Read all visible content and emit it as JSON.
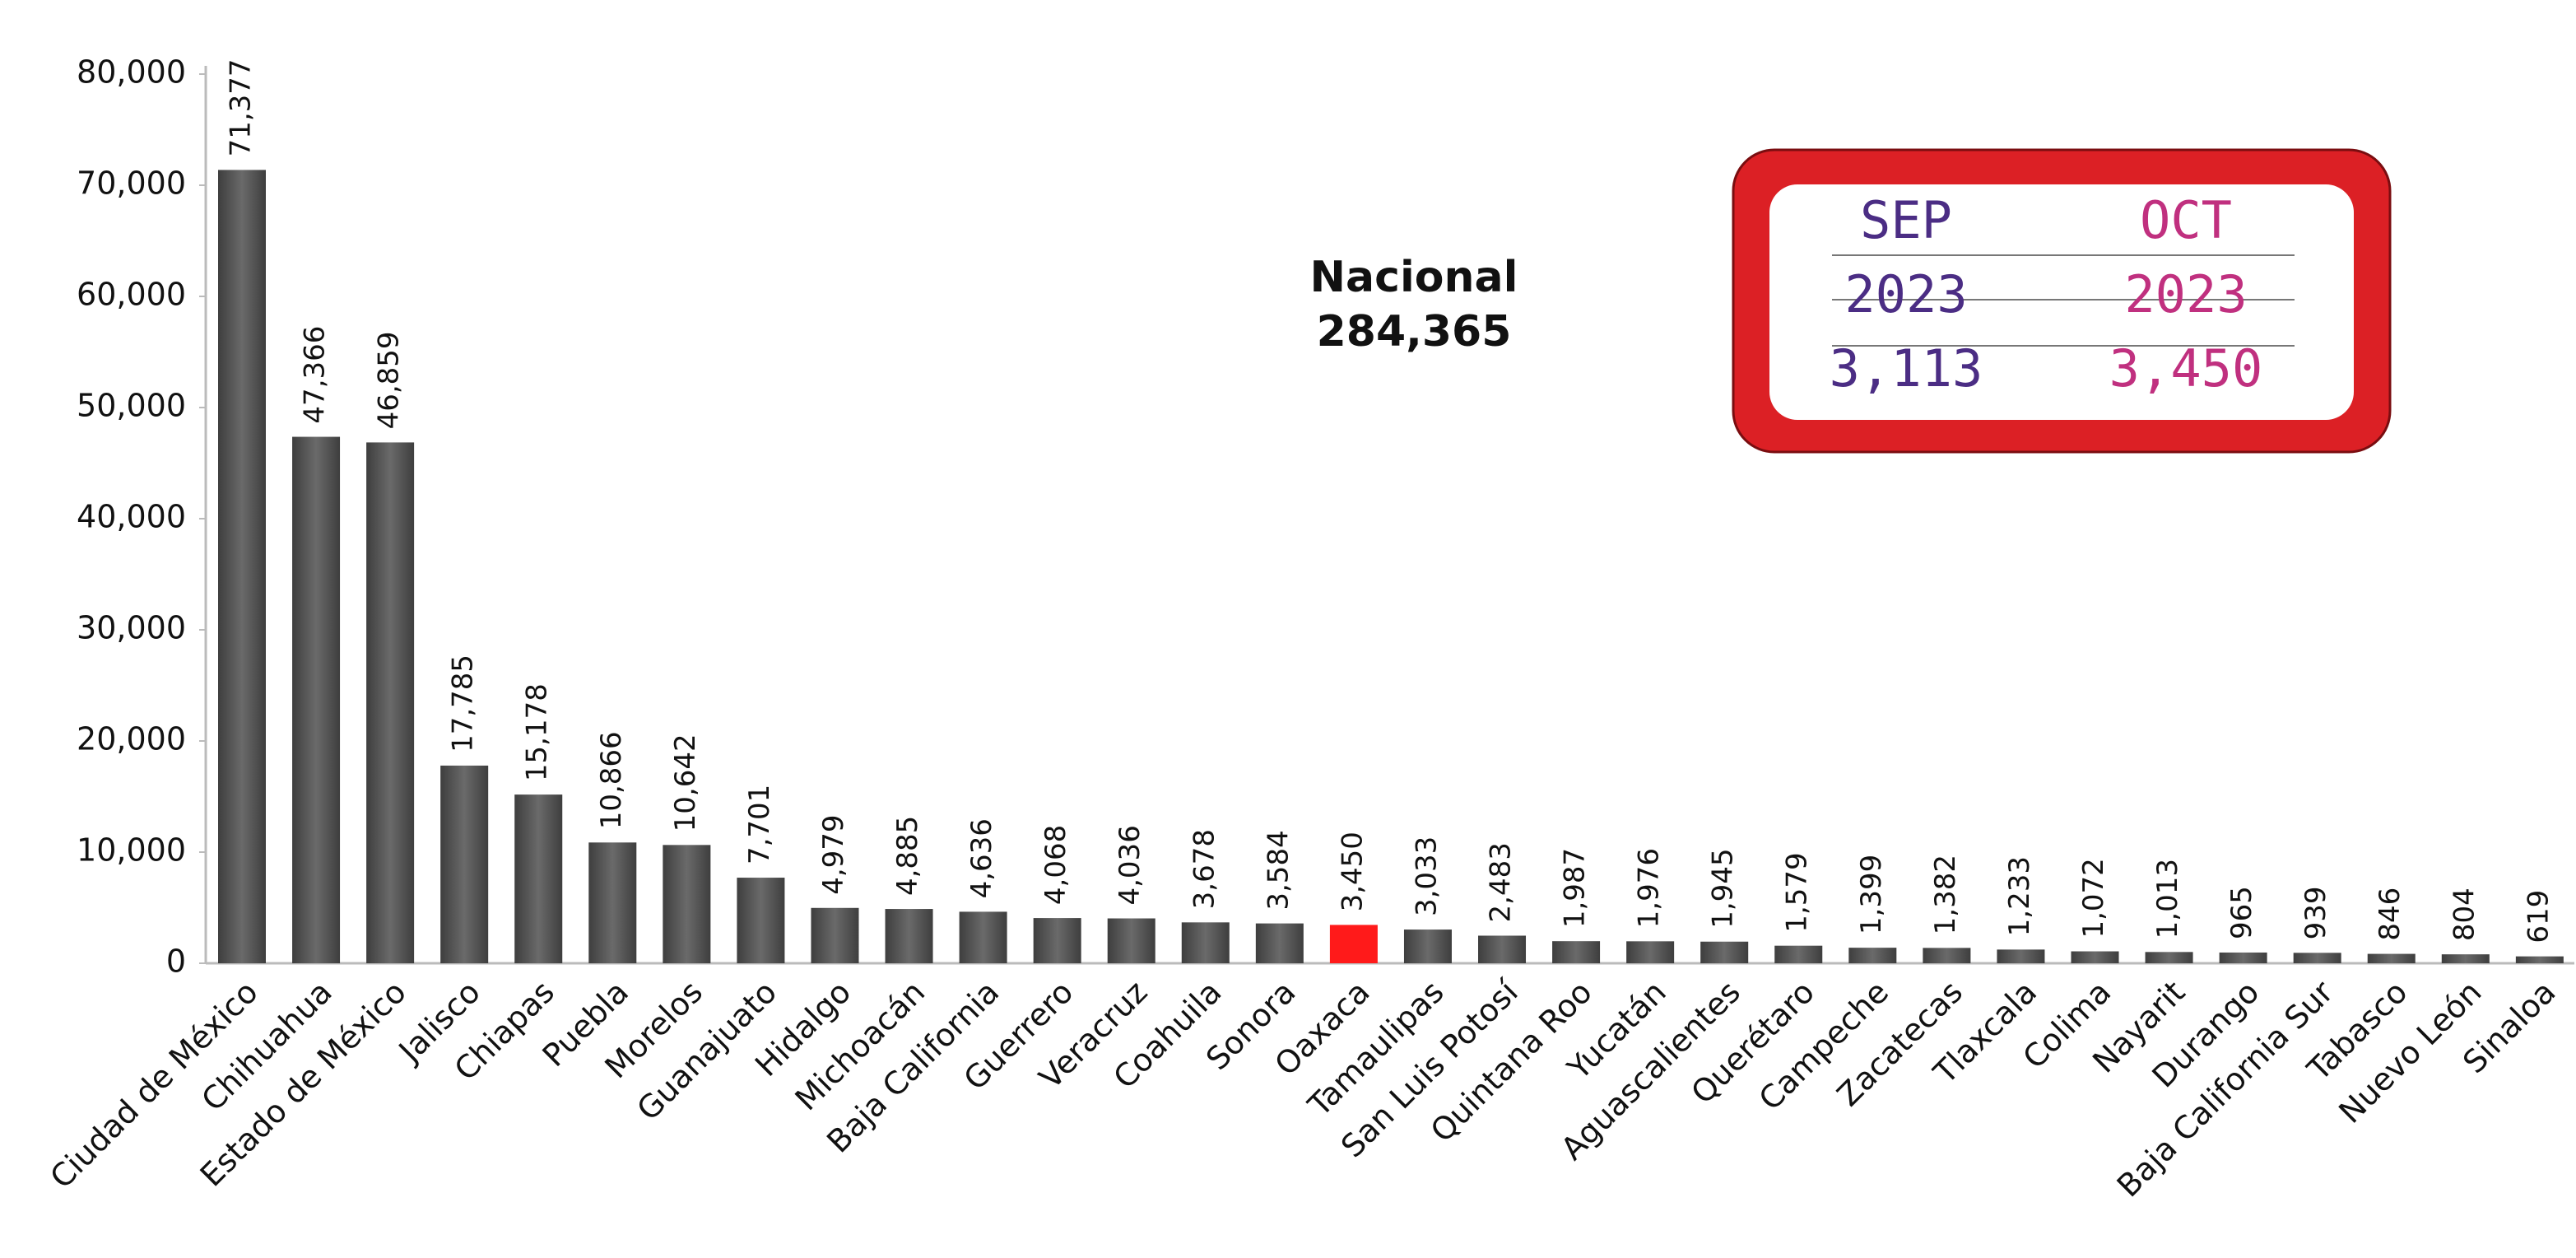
{
  "chart_data": {
    "type": "bar",
    "categories": [
      "Ciudad de México",
      "Chihuahua",
      "Estado de México",
      "Jalisco",
      "Chiapas",
      "Puebla",
      "Morelos",
      "Guanajuato",
      "Hidalgo",
      "Michoacán",
      "Baja California",
      "Guerrero",
      "Veracruz",
      "Coahuila",
      "Sonora",
      "Oaxaca",
      "Tamaulipas",
      "San Luis Potosí",
      "Quintana Roo",
      "Yucatán",
      "Aguascalientes",
      "Querétaro",
      "Campeche",
      "Zacatecas",
      "Tlaxcala",
      "Colima",
      "Nayarit",
      "Durango",
      "Baja California Sur",
      "Tabasco",
      "Nuevo León",
      "Sinaloa"
    ],
    "values": [
      71377,
      47366,
      46859,
      17785,
      15178,
      10866,
      10642,
      7701,
      4979,
      4885,
      4636,
      4068,
      4036,
      3678,
      3584,
      3450,
      3033,
      2483,
      1987,
      1976,
      1945,
      1579,
      1399,
      1382,
      1233,
      1072,
      1013,
      965,
      939,
      846,
      804,
      619
    ],
    "value_labels": [
      "71,377",
      "47,366",
      "46,859",
      "17,785",
      "15,178",
      "10,866",
      "10,642",
      "7,701",
      "4,979",
      "4,885",
      "4,636",
      "4,068",
      "4,036",
      "3,678",
      "3,584",
      "3,450",
      "3,033",
      "2,483",
      "1,987",
      "1,976",
      "1,945",
      "1,579",
      "1,399",
      "1,382",
      "1,233",
      "1,072",
      "1,013",
      "965",
      "939",
      "846",
      "804",
      "619"
    ],
    "color": "#5a5a5a",
    "highlight_category": "Oaxaca",
    "highlight_color": "#ff1a1a",
    "ylim": [
      0,
      80000
    ],
    "yticks": [
      0,
      {
        "value": 10000,
        "label": "10,000"
      },
      {
        "value": 20000,
        "label": "20,000"
      },
      {
        "value": 30000,
        "label": "30,000"
      },
      {
        "value": 40000,
        "label": "40,000"
      },
      {
        "value": 50000,
        "label": "50,000"
      },
      {
        "value": 60000,
        "label": "60,000"
      },
      {
        "value": 70000,
        "label": "70,000"
      },
      {
        "value": 80000,
        "label": "80,000"
      }
    ],
    "grid": false,
    "annotation": {
      "title": "Nacional",
      "value": "284,365"
    },
    "inset": {
      "columns": [
        {
          "month": "SEP",
          "year": "2023",
          "value": "3,113",
          "color": "#4b2d84"
        },
        {
          "month": "OCT",
          "year": "2023",
          "value": "3,450",
          "color": "#c0307f"
        }
      ]
    }
  }
}
